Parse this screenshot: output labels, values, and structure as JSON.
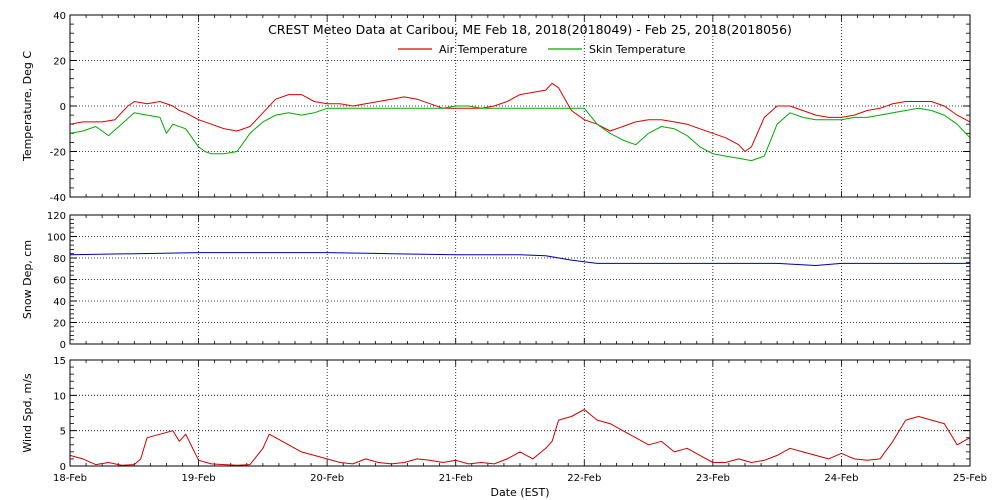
{
  "chart_data": {
    "title": "CREST Meteo Data at Caribou, ME   Feb 18, 2018(2018049) - Feb 25, 2018(2018056)",
    "xlabel": "Date (EST)",
    "x_ticks": [
      "18-Feb",
      "19-Feb",
      "20-Feb",
      "21-Feb",
      "22-Feb",
      "23-Feb",
      "24-Feb",
      "25-Feb"
    ],
    "xlim": [
      0,
      7
    ],
    "grid": true,
    "panels": [
      {
        "type": "line",
        "ylabel": "Temperature, Deg C",
        "ylim": [
          -40,
          40
        ],
        "y_ticks": [
          -40,
          -20,
          0,
          20,
          40
        ],
        "legend": "top-center",
        "series": [
          {
            "name": "Air Temperature",
            "color": "#dd0000",
            "x": [
              0,
              0.1,
              0.25,
              0.35,
              0.45,
              0.5,
              0.6,
              0.7,
              0.8,
              0.85,
              0.9,
              1.0,
              1.1,
              1.2,
              1.3,
              1.4,
              1.5,
              1.6,
              1.7,
              1.8,
              1.9,
              2.0,
              2.1,
              2.2,
              2.3,
              2.4,
              2.5,
              2.6,
              2.7,
              2.8,
              2.9,
              3.0,
              3.1,
              3.2,
              3.3,
              3.4,
              3.5,
              3.6,
              3.7,
              3.75,
              3.8,
              3.85,
              3.9,
              4.0,
              4.1,
              4.2,
              4.3,
              4.4,
              4.5,
              4.6,
              4.7,
              4.8,
              4.9,
              5.0,
              5.1,
              5.2,
              5.25,
              5.3,
              5.4,
              5.5,
              5.6,
              5.7,
              5.8,
              5.9,
              6.0,
              6.1,
              6.2,
              6.3,
              6.4,
              6.5,
              6.6,
              6.7,
              6.8,
              6.9,
              7.0
            ],
            "values": [
              -8,
              -7,
              -7,
              -6,
              0,
              2,
              1,
              2,
              0,
              -2,
              -3,
              -6,
              -8,
              -10,
              -11,
              -9,
              -3,
              3,
              5,
              5,
              2,
              1,
              1,
              0,
              1,
              2,
              3,
              4,
              3,
              1,
              -1,
              -1,
              -1,
              -1,
              0,
              2,
              5,
              6,
              7,
              10,
              8,
              3,
              -2,
              -6,
              -8,
              -11,
              -9,
              -7,
              -6,
              -6,
              -7,
              -8,
              -10,
              -12,
              -14,
              -17,
              -20,
              -18,
              -5,
              0,
              0,
              -2,
              -4,
              -5,
              -5,
              -4,
              -2,
              -1,
              1,
              2,
              2,
              2,
              0,
              -4,
              -7
            ]
          },
          {
            "name": "Skin Temperature",
            "color": "#00aa00",
            "x": [
              0,
              0.1,
              0.2,
              0.3,
              0.4,
              0.5,
              0.6,
              0.7,
              0.75,
              0.8,
              0.9,
              1.0,
              1.05,
              1.1,
              1.2,
              1.3,
              1.4,
              1.5,
              1.6,
              1.7,
              1.8,
              1.9,
              2.0,
              2.1,
              2.2,
              2.3,
              2.4,
              2.5,
              2.6,
              2.7,
              2.8,
              2.9,
              3.0,
              3.1,
              3.2,
              3.3,
              3.4,
              3.5,
              3.6,
              3.7,
              3.8,
              3.9,
              4.0,
              4.1,
              4.2,
              4.3,
              4.4,
              4.5,
              4.6,
              4.7,
              4.8,
              4.9,
              5.0,
              5.1,
              5.2,
              5.3,
              5.4,
              5.5,
              5.6,
              5.7,
              5.8,
              5.9,
              6.0,
              6.1,
              6.2,
              6.3,
              6.4,
              6.5,
              6.6,
              6.7,
              6.8,
              6.9,
              7.0
            ],
            "values": [
              -12,
              -11,
              -9,
              -13,
              -8,
              -3,
              -4,
              -5,
              -12,
              -8,
              -10,
              -18,
              -20,
              -21,
              -21,
              -20,
              -12,
              -7,
              -4,
              -3,
              -4,
              -3,
              -1,
              -1,
              -1,
              -1,
              -1,
              -1,
              -1,
              -1,
              -1,
              -1,
              0,
              0,
              -1,
              -1,
              -1,
              -1,
              -1,
              -1,
              -1,
              -1,
              -1,
              -8,
              -12,
              -15,
              -17,
              -12,
              -9,
              -10,
              -13,
              -18,
              -21,
              -22,
              -23,
              -24,
              -22,
              -8,
              -3,
              -5,
              -6,
              -6,
              -6,
              -5,
              -5,
              -4,
              -3,
              -2,
              -1,
              -2,
              -4,
              -8,
              -14
            ]
          }
        ]
      },
      {
        "type": "line",
        "ylabel": "Snow Dep, cm",
        "ylim": [
          0,
          120
        ],
        "y_ticks": [
          0,
          20,
          40,
          60,
          80,
          100,
          120
        ],
        "series": [
          {
            "color": "#0000aa",
            "x": [
              0,
              0.5,
              1.0,
              1.5,
              2.0,
              2.5,
              3.0,
              3.5,
              3.7,
              3.9,
              4.1,
              4.5,
              5.0,
              5.5,
              5.8,
              6.0,
              6.5,
              7.0
            ],
            "values": [
              83,
              84,
              85,
              85,
              85,
              84,
              83,
              83,
              82,
              78,
              75,
              75,
              75,
              75,
              73,
              75,
              75,
              75
            ]
          }
        ]
      },
      {
        "type": "line",
        "ylabel": "Wind Spd, m/s",
        "ylim": [
          0,
          15
        ],
        "y_ticks": [
          0,
          5,
          10,
          15
        ],
        "series": [
          {
            "color": "#cc0000",
            "x": [
              0,
              0.1,
              0.2,
              0.3,
              0.4,
              0.5,
              0.55,
              0.6,
              0.7,
              0.8,
              0.85,
              0.9,
              1.0,
              1.1,
              1.2,
              1.3,
              1.4,
              1.5,
              1.55,
              1.6,
              1.7,
              1.8,
              1.9,
              2.0,
              2.1,
              2.2,
              2.3,
              2.4,
              2.5,
              2.6,
              2.7,
              2.8,
              2.9,
              3.0,
              3.1,
              3.2,
              3.3,
              3.4,
              3.5,
              3.6,
              3.7,
              3.75,
              3.8,
              3.9,
              4.0,
              4.1,
              4.2,
              4.3,
              4.4,
              4.5,
              4.6,
              4.7,
              4.8,
              4.9,
              5.0,
              5.1,
              5.2,
              5.3,
              5.4,
              5.5,
              5.6,
              5.7,
              5.8,
              5.9,
              6.0,
              6.1,
              6.2,
              6.3,
              6.4,
              6.5,
              6.6,
              6.7,
              6.8,
              6.9,
              7.0
            ],
            "values": [
              1.5,
              1.0,
              0.2,
              0.5,
              0.1,
              0.2,
              1.0,
              4.0,
              4.5,
              5.0,
              3.5,
              4.5,
              0.8,
              0.3,
              0.2,
              0.1,
              0.2,
              2.5,
              4.5,
              4.0,
              3.0,
              2.0,
              1.5,
              1.0,
              0.5,
              0.3,
              1.0,
              0.5,
              0.3,
              0.5,
              1.0,
              0.8,
              0.5,
              0.8,
              0.3,
              0.5,
              0.3,
              1.0,
              2.0,
              1.0,
              2.5,
              3.5,
              6.5,
              7.0,
              8.0,
              6.5,
              6.0,
              5.0,
              4.0,
              3.0,
              3.5,
              2.0,
              2.5,
              1.5,
              0.5,
              0.5,
              1.0,
              0.5,
              0.8,
              1.5,
              2.5,
              2.0,
              1.5,
              1.0,
              1.8,
              1.0,
              0.8,
              1.0,
              3.5,
              6.5,
              7.0,
              6.5,
              6.0,
              3.0,
              4.0
            ]
          }
        ]
      }
    ]
  }
}
